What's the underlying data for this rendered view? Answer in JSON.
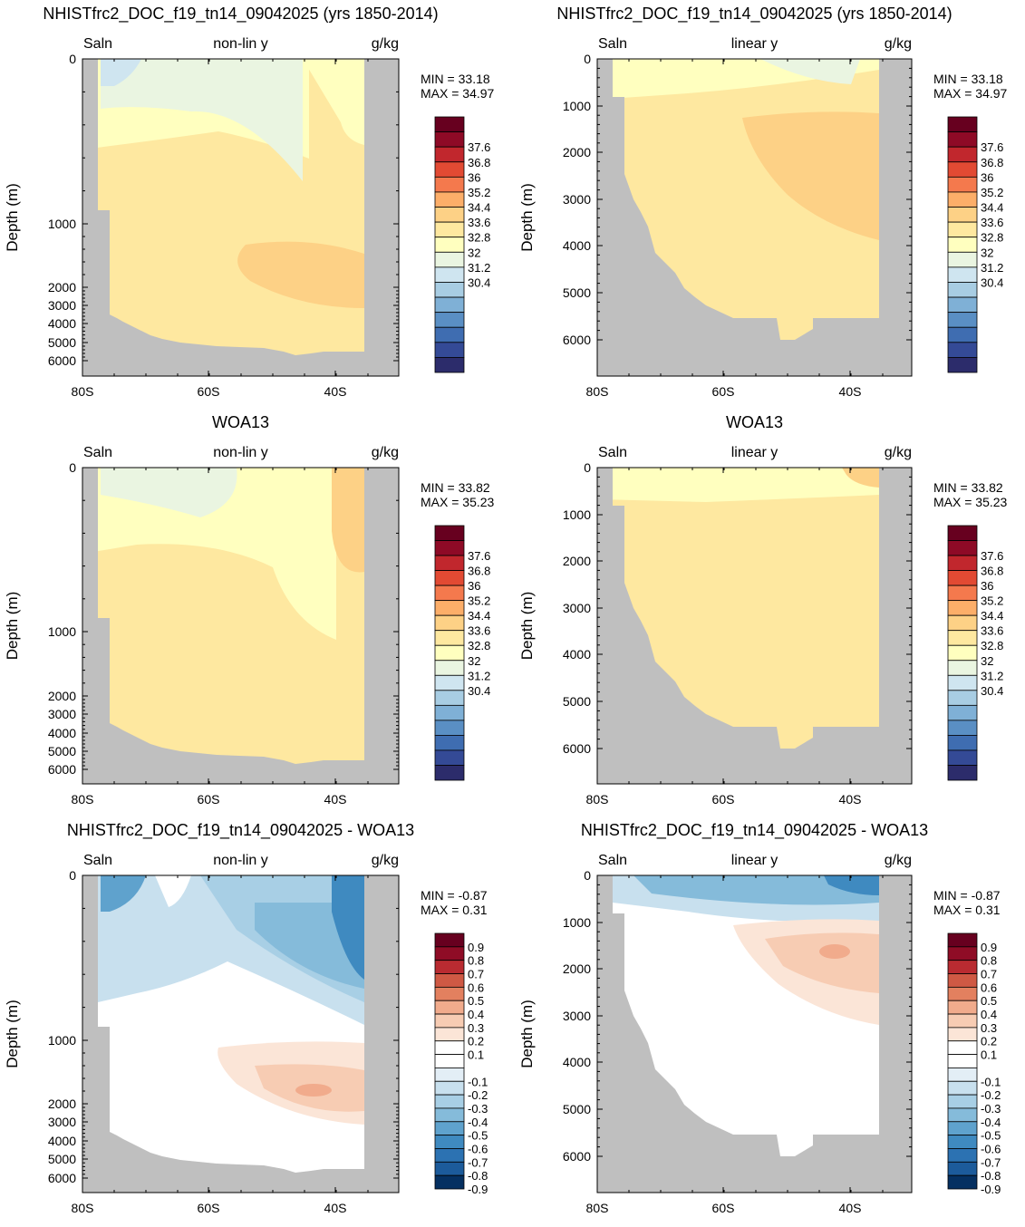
{
  "field": "Saln",
  "units": "g/kg",
  "colors": {
    "land": "#bfbfbf",
    "full_palette": [
      "#2c2c6b",
      "#344a96",
      "#3f6db1",
      "#5a8fc4",
      "#7fb0d6",
      "#a8cde3",
      "#cfe5f0",
      "#eaf5e1",
      "#ffffbf",
      "#fee8a0",
      "#fdd186",
      "#fcae69",
      "#f4794d",
      "#e24a33",
      "#c1272d",
      "#8e0a26",
      "#67001f"
    ],
    "diff_palette": [
      "#053061",
      "#1c5b9b",
      "#2c72b2",
      "#3f8ac0",
      "#5fa2cd",
      "#85bbda",
      "#a8cfe5",
      "#c8e0ee",
      "#e3eef6",
      "#ffffff",
      "#ffffff",
      "#fbe5d7",
      "#f7ccb3",
      "#f1ab8c",
      "#e3805f",
      "#cf5944",
      "#b92b31",
      "#8f0c26",
      "#67001f"
    ]
  },
  "chart_data": [
    {
      "panel": "model-nonlin",
      "title": "NHISTfrc2_DOC_f19_tn14_09042025 (yrs 1850-2014)",
      "left_label": "Saln",
      "center_label": "non-lin y",
      "right_label": "g/kg",
      "ylabel": "Depth (m)",
      "type": "heatmap",
      "yscale": "non-linear",
      "yticks": [
        "0",
        "1000",
        "2000",
        "3000",
        "4000",
        "5000",
        "6000"
      ],
      "xticks": [
        "80S",
        "60S",
        "40S"
      ],
      "min_text": "MIN =  33.18",
      "max_text": "MAX =  34.97",
      "colorbar": "full"
    },
    {
      "panel": "model-lin",
      "title": "NHISTfrc2_DOC_f19_tn14_09042025 (yrs 1850-2014)",
      "left_label": "Saln",
      "center_label": "linear y",
      "right_label": "g/kg",
      "ylabel": "Depth (m)",
      "type": "heatmap",
      "yscale": "linear",
      "yticks": [
        "0",
        "1000",
        "2000",
        "3000",
        "4000",
        "5000",
        "6000"
      ],
      "xticks": [
        "80S",
        "60S",
        "40S"
      ],
      "min_text": "MIN =  33.18",
      "max_text": "MAX =  34.97",
      "colorbar": "full"
    },
    {
      "panel": "obs-nonlin",
      "title": "WOA13",
      "left_label": "Saln",
      "center_label": "non-lin y",
      "right_label": "g/kg",
      "ylabel": "Depth (m)",
      "type": "heatmap",
      "yscale": "non-linear",
      "yticks": [
        "0",
        "1000",
        "2000",
        "3000",
        "4000",
        "5000",
        "6000"
      ],
      "xticks": [
        "80S",
        "60S",
        "40S"
      ],
      "min_text": "MIN =  33.82",
      "max_text": "MAX =  35.23",
      "colorbar": "full"
    },
    {
      "panel": "obs-lin",
      "title": "WOA13",
      "left_label": "Saln",
      "center_label": "linear y",
      "right_label": "g/kg",
      "ylabel": "Depth (m)",
      "type": "heatmap",
      "yscale": "linear",
      "yticks": [
        "0",
        "1000",
        "2000",
        "3000",
        "4000",
        "5000",
        "6000"
      ],
      "xticks": [
        "80S",
        "60S",
        "40S"
      ],
      "min_text": "MIN =  33.82",
      "max_text": "MAX =  35.23",
      "colorbar": "full"
    },
    {
      "panel": "diff-nonlin",
      "title": "NHISTfrc2_DOC_f19_tn14_09042025 - WOA13",
      "left_label": "Saln",
      "center_label": "non-lin y",
      "right_label": "g/kg",
      "ylabel": "Depth (m)",
      "type": "heatmap",
      "yscale": "non-linear",
      "yticks": [
        "0",
        "1000",
        "2000",
        "3000",
        "4000",
        "5000",
        "6000"
      ],
      "xticks": [
        "80S",
        "60S",
        "40S"
      ],
      "min_text": "MIN =  -0.87",
      "max_text": "MAX =   0.31",
      "colorbar": "diff"
    },
    {
      "panel": "diff-lin",
      "title": "NHISTfrc2_DOC_f19_tn14_09042025 - WOA13",
      "left_label": "Saln",
      "center_label": "linear y",
      "right_label": "g/kg",
      "ylabel": "Depth (m)",
      "type": "heatmap",
      "yscale": "linear",
      "yticks": [
        "0",
        "1000",
        "2000",
        "3000",
        "4000",
        "5000",
        "6000"
      ],
      "xticks": [
        "80S",
        "60S",
        "40S"
      ],
      "min_text": "MIN =  -0.87",
      "max_text": "MAX =   0.31",
      "colorbar": "diff"
    }
  ],
  "colorbars": {
    "full": {
      "labels": [
        "37.6",
        "36.8",
        "36",
        "35.2",
        "34.4",
        "33.6",
        "32.8",
        "32",
        "31.2",
        "30.4"
      ]
    },
    "diff": {
      "labels": [
        "0.9",
        "0.8",
        "0.7",
        "0.6",
        "0.5",
        "0.4",
        "0.3",
        "0.2",
        "0.1",
        "-0.1",
        "-0.2",
        "-0.3",
        "-0.4",
        "-0.5",
        "-0.6",
        "-0.7",
        "-0.8",
        "-0.9"
      ]
    }
  }
}
